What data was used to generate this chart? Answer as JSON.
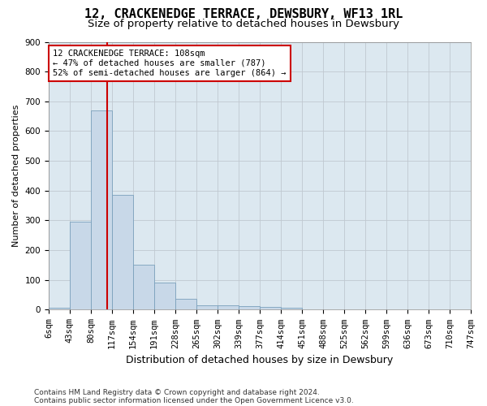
{
  "title": "12, CRACKENEDGE TERRACE, DEWSBURY, WF13 1RL",
  "subtitle": "Size of property relative to detached houses in Dewsbury",
  "xlabel": "Distribution of detached houses by size in Dewsbury",
  "ylabel": "Number of detached properties",
  "footer_line1": "Contains HM Land Registry data © Crown copyright and database right 2024.",
  "footer_line2": "Contains public sector information licensed under the Open Government Licence v3.0.",
  "bin_labels": [
    "6sqm",
    "43sqm",
    "80sqm",
    "117sqm",
    "154sqm",
    "191sqm",
    "228sqm",
    "265sqm",
    "302sqm",
    "339sqm",
    "377sqm",
    "414sqm",
    "451sqm",
    "488sqm",
    "525sqm",
    "562sqm",
    "599sqm",
    "636sqm",
    "673sqm",
    "710sqm",
    "747sqm"
  ],
  "bar_heights": [
    8,
    295,
    670,
    385,
    152,
    90,
    37,
    15,
    14,
    12,
    10,
    6,
    0,
    0,
    0,
    0,
    0,
    0,
    0,
    0
  ],
  "bar_color": "#c8d8e8",
  "bar_edge_color": "#7aa0bc",
  "vline_color": "#cc0000",
  "annotation_text": "12 CRACKENEDGE TERRACE: 108sqm\n← 47% of detached houses are smaller (787)\n52% of semi-detached houses are larger (864) →",
  "annotation_box_color": "white",
  "annotation_box_edge_color": "#cc0000",
  "ylim": [
    0,
    900
  ],
  "yticks": [
    0,
    100,
    200,
    300,
    400,
    500,
    600,
    700,
    800,
    900
  ],
  "grid_color": "#c0c8d0",
  "bg_color": "#dce8f0",
  "title_fontsize": 11,
  "subtitle_fontsize": 9.5,
  "xlabel_fontsize": 9,
  "ylabel_fontsize": 8,
  "tick_fontsize": 7.5,
  "annotation_fontsize": 7.5,
  "footer_fontsize": 6.5
}
